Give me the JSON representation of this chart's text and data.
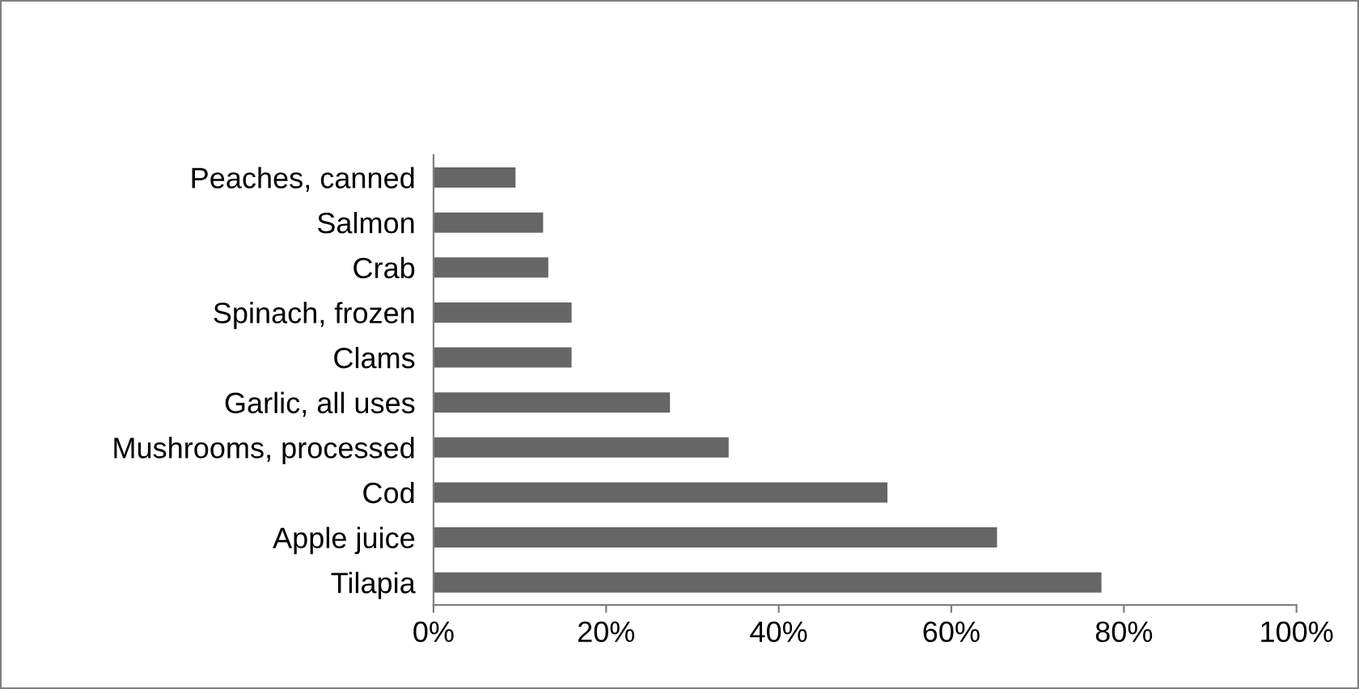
{
  "chart_data": {
    "type": "bar",
    "orientation": "horizontal",
    "categories": [
      "Peaches, canned",
      "Salmon",
      "Crab",
      "Spinach, frozen",
      "Clams",
      "Garlic, all uses",
      "Mushrooms, processed",
      "Cod",
      "Apple juice",
      "Tilapia"
    ],
    "values": [
      9.5,
      12.7,
      13.3,
      16.0,
      16.0,
      27.4,
      34.2,
      52.6,
      65.3,
      77.4
    ],
    "color": "#666666",
    "xlim": [
      0,
      100
    ],
    "xticks": [
      {
        "value": 0,
        "label": "0%"
      },
      {
        "value": 20,
        "label": "20%"
      },
      {
        "value": 40,
        "label": "40%"
      },
      {
        "value": 60,
        "label": "60%"
      },
      {
        "value": 80,
        "label": "80%"
      },
      {
        "value": 100,
        "label": "100%"
      }
    ],
    "grid": false,
    "legend": false
  }
}
